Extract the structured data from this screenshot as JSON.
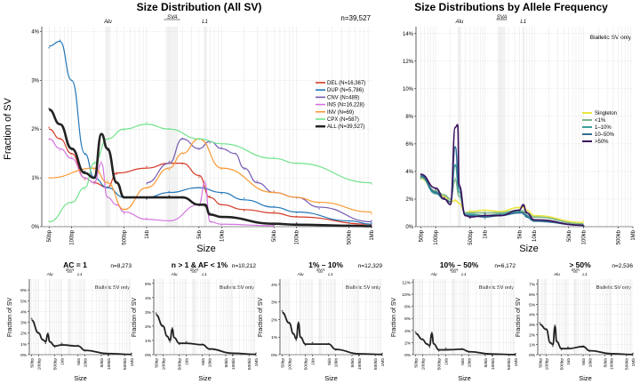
{
  "colors": {
    "DEL": "#D43925",
    "DUP": "#2376B7",
    "CNV": "#7459B2",
    "INS": "#D474E0",
    "INV": "#FA9A34",
    "CPX": "#71E38C",
    "ALL": "#222222",
    "freq": [
      "#E9E642",
      "#7FB58A",
      "#3F9E9A",
      "#2F6E92",
      "#3B0F5C"
    ]
  },
  "x_ticks": {
    "main": [
      "50bp",
      "100bp",
      "500bp",
      "1kb",
      "5kb",
      "10kb",
      "50kb",
      "100kb",
      "500kb",
      "1Mb"
    ],
    "small": [
      "50bp",
      "100bp",
      "500bp",
      "1kb",
      "5kb",
      "10kb",
      "50kb",
      "100kb",
      "500kb",
      "1Mb"
    ]
  },
  "element_labels": {
    "alu": "Alu",
    "sva": "SVA",
    "l1": "L1"
  },
  "main_chart": {
    "title": "Size Distribution (All SV)",
    "n": "n=39,527",
    "xlabel": "Size",
    "ylabel": "Fraction of SV",
    "yticks": [
      "0%",
      "1%",
      "2%",
      "3%",
      "4%"
    ],
    "legend": [
      {
        "key": "DEL",
        "label": "DEL (N=16,367)"
      },
      {
        "key": "DUP",
        "label": "DUP (N=5,786)"
      },
      {
        "key": "CNV",
        "label": "CNV (N=489)"
      },
      {
        "key": "INS",
        "label": "INS (N=16,228)"
      },
      {
        "key": "INV",
        "label": "INV (N=69)"
      },
      {
        "key": "CPX",
        "label": "CPX (N=587)"
      },
      {
        "key": "ALL",
        "label": "ALL (N=39,527)"
      }
    ]
  },
  "freq_chart": {
    "title": "Size Distributions by Allele Frequency",
    "note": "Biallelic SV only",
    "xlabel": "Size",
    "yticks": [
      "0%",
      "2%",
      "4%",
      "6%",
      "8%",
      "10%",
      "12%",
      "14%"
    ],
    "legend": [
      "Singleton",
      "<1%",
      "1–10%",
      "10–50%",
      ">50%"
    ]
  },
  "small_panels": [
    {
      "title": "AC = 1",
      "n": "n=8,273",
      "note": "Biallelic SV only",
      "yticks": [
        "0%",
        "1%",
        "2%",
        "3%",
        "4%",
        "5%",
        "6%"
      ],
      "xlabel": "Size",
      "ylabel": "Fraction of SV"
    },
    {
      "title": "n > 1 & AF < 1%",
      "n": "n=10,212",
      "note": "Biallelic SV only",
      "yticks": [
        "0%",
        "1%",
        "2%",
        "3%",
        "4%",
        "5%"
      ],
      "xlabel": "Size",
      "ylabel": "Fraction of SV"
    },
    {
      "title": "1% – 10%",
      "n": "n=12,329",
      "note": "Biallelic SV only",
      "yticks": [
        "0%",
        "1%",
        "2%",
        "3%",
        "4%"
      ],
      "xlabel": "Size",
      "ylabel": "Fraction of SV"
    },
    {
      "title": "10% – 50%",
      "n": "n=6,172",
      "note": "Biallelic SV only",
      "yticks": [
        "0%",
        "2%",
        "4%",
        "6%",
        "8%",
        "10%",
        "12%"
      ],
      "xlabel": "Size",
      "ylabel": "Fraction of SV"
    },
    {
      "title": "> 50%",
      "n": "n=2,536",
      "note": "Biallelic SV only",
      "yticks": [
        "0%",
        "1%",
        "2%",
        "3%",
        "4%",
        "5%",
        "6%",
        "7%"
      ],
      "xlabel": "Size",
      "ylabel": "Fraction of SV"
    }
  ],
  "chart_data": [
    {
      "type": "line",
      "title": "Size Distribution (All SV)",
      "xlabel": "Size",
      "ylabel": "Fraction of SV",
      "xscale": "log",
      "xlim": [
        40,
        1000000
      ],
      "ylim": [
        0,
        4.1
      ],
      "series": [
        {
          "name": "DEL (N=16,367)",
          "x": [
            50,
            70,
            100,
            150,
            200,
            300,
            400,
            1000,
            2000,
            3000,
            5000,
            7000,
            10000,
            20000,
            50000,
            100000,
            1000000
          ],
          "y": [
            2.0,
            1.8,
            1.5,
            1.0,
            0.9,
            0.8,
            1.1,
            1.2,
            1.3,
            1.3,
            1.05,
            0.6,
            0.45,
            0.35,
            0.28,
            0.2,
            0.05
          ]
        },
        {
          "name": "DUP (N=5,786)",
          "x": [
            50,
            70,
            100,
            150,
            200,
            300,
            500,
            1000,
            2000,
            5000,
            10000,
            20000,
            50000,
            100000,
            500000,
            1000000
          ],
          "y": [
            3.7,
            3.8,
            3.0,
            1.5,
            1.0,
            0.8,
            0.6,
            0.6,
            0.7,
            0.8,
            0.7,
            0.55,
            0.4,
            0.3,
            0.12,
            0.05
          ]
        },
        {
          "name": "CNV (N=489)",
          "x": [
            1000,
            2000,
            3000,
            5000,
            7000,
            10000,
            15000,
            20000,
            30000,
            50000,
            100000,
            200000,
            1000000
          ],
          "y": [
            0.9,
            1.3,
            1.8,
            1.6,
            1.75,
            1.6,
            1.5,
            1.2,
            0.9,
            0.7,
            0.6,
            0.4,
            0.1
          ]
        },
        {
          "name": "INS (N=16,228)",
          "x": [
            50,
            70,
            100,
            150,
            200,
            250,
            300,
            400,
            500,
            1000,
            2000,
            5000,
            6000,
            7000,
            10000,
            50000
          ],
          "y": [
            1.8,
            1.6,
            1.4,
            1.0,
            0.9,
            1.3,
            0.6,
            0.45,
            0.3,
            0.15,
            0.12,
            0.45,
            0.9,
            0.1,
            0.05,
            0.02
          ]
        },
        {
          "name": "INV (N=69)",
          "x": [
            50,
            200,
            300,
            500,
            1000,
            2000,
            3000,
            5000,
            10000,
            50000,
            100000,
            200000,
            1000000
          ],
          "y": [
            1.0,
            1.2,
            0.9,
            0.35,
            0.8,
            1.2,
            1.5,
            1.8,
            1.2,
            0.7,
            0.6,
            0.5,
            0.3
          ]
        },
        {
          "name": "CPX (N=587)",
          "x": [
            50,
            100,
            150,
            200,
            300,
            500,
            1000,
            2000,
            5000,
            10000,
            50000,
            100000,
            1000000
          ],
          "y": [
            0.1,
            0.5,
            0.8,
            1.3,
            1.8,
            2.0,
            2.1,
            2.0,
            1.8,
            1.7,
            1.4,
            1.3,
            0.9
          ]
        },
        {
          "name": "ALL (N=39,527)",
          "x": [
            50,
            70,
            100,
            150,
            200,
            250,
            300,
            400,
            500,
            1000,
            2000,
            3000,
            5000,
            6000,
            7000,
            10000,
            50000,
            100000,
            500000,
            1000000
          ],
          "y": [
            2.4,
            2.1,
            1.6,
            1.1,
            1.0,
            1.9,
            1.6,
            0.9,
            0.6,
            0.6,
            0.6,
            0.6,
            0.45,
            0.45,
            0.25,
            0.2,
            0.06,
            0.04,
            0.02,
            0.01
          ]
        }
      ]
    },
    {
      "type": "line",
      "title": "Size Distributions by Allele Frequency",
      "xlabel": "Size",
      "xscale": "log",
      "xlim": [
        40,
        1000000
      ],
      "ylim": [
        0,
        14.5
      ],
      "series": [
        {
          "name": "Singleton",
          "x": [
            50,
            100,
            150,
            200,
            250,
            300,
            400,
            500,
            1000,
            2000,
            5000,
            6000,
            7000,
            10000,
            100000
          ],
          "y": [
            3.5,
            2.5,
            2.2,
            1.8,
            1.9,
            1.7,
            1.0,
            1.1,
            1.2,
            1.1,
            1.4,
            1.4,
            1.2,
            0.8,
            0.3
          ]
        },
        {
          "name": "<1%",
          "x": [
            50,
            100,
            150,
            200,
            250,
            300,
            400,
            500,
            1000,
            2000,
            5000,
            6000,
            7000,
            10000,
            100000
          ],
          "y": [
            3.6,
            2.6,
            2.3,
            2.0,
            3.4,
            2.2,
            1.0,
            1.0,
            1.0,
            1.0,
            1.2,
            1.1,
            1.0,
            0.7,
            0.2
          ]
        },
        {
          "name": "1–10%",
          "x": [
            50,
            100,
            150,
            200,
            250,
            300,
            400,
            500,
            1000,
            2000,
            5000,
            6000,
            7000,
            10000,
            100000
          ],
          "y": [
            3.6,
            2.4,
            2.0,
            1.8,
            4.5,
            2.5,
            0.9,
            0.9,
            0.8,
            0.9,
            1.1,
            1.0,
            0.8,
            0.5,
            0.1
          ]
        },
        {
          "name": "10–50%",
          "x": [
            50,
            100,
            150,
            200,
            250,
            300,
            400,
            500,
            1000,
            2000,
            5000,
            6000,
            7000,
            10000,
            100000
          ],
          "y": [
            3.7,
            2.5,
            2.0,
            1.8,
            5.8,
            2.8,
            0.8,
            0.8,
            0.7,
            0.8,
            1.0,
            1.0,
            0.7,
            0.4,
            0.1
          ]
        },
        {
          "name": ">50%",
          "x": [
            50,
            100,
            150,
            200,
            250,
            280,
            300,
            400,
            500,
            1000,
            2000,
            5000,
            6000,
            7000,
            10000,
            100000
          ],
          "y": [
            3.8,
            2.8,
            2.0,
            1.6,
            7.2,
            7.4,
            3.0,
            0.8,
            0.7,
            0.8,
            0.8,
            1.2,
            1.6,
            1.0,
            0.5,
            0.1
          ]
        }
      ]
    },
    {
      "type": "line",
      "title": "AC = 1",
      "xlabel": "Size",
      "ylabel": "Fraction of SV",
      "xscale": "log",
      "ylim": [
        0,
        7
      ],
      "series": [
        {
          "name": "ALL",
          "x": [
            50,
            100,
            150,
            200,
            250,
            300,
            500,
            1000,
            5000,
            10000,
            100000,
            1000000
          ],
          "y": [
            3.2,
            2.0,
            1.4,
            1.2,
            1.9,
            1.2,
            0.8,
            0.9,
            0.8,
            0.4,
            0.1,
            0.02
          ]
        }
      ]
    },
    {
      "type": "line",
      "title": "n > 1 & AF < 1%",
      "xlabel": "Size",
      "ylabel": "Fraction of SV",
      "xscale": "log",
      "ylim": [
        0,
        5.3
      ],
      "series": [
        {
          "name": "ALL",
          "x": [
            50,
            100,
            150,
            200,
            250,
            300,
            500,
            1000,
            5000,
            10000,
            100000,
            1000000
          ],
          "y": [
            2.8,
            2.0,
            1.3,
            1.0,
            1.8,
            1.2,
            0.8,
            0.8,
            0.7,
            0.4,
            0.1,
            0.02
          ]
        }
      ]
    },
    {
      "type": "line",
      "title": "1% – 10%",
      "xlabel": "Size",
      "ylabel": "Fraction of SV",
      "xscale": "log",
      "ylim": [
        0,
        4.3
      ],
      "series": [
        {
          "name": "ALL",
          "x": [
            50,
            100,
            150,
            200,
            250,
            300,
            500,
            1000,
            5000,
            10000,
            100000,
            1000000
          ],
          "y": [
            2.4,
            1.8,
            1.2,
            0.9,
            1.8,
            1.0,
            0.6,
            0.6,
            0.6,
            0.3,
            0.05,
            0.01
          ]
        }
      ]
    },
    {
      "type": "line",
      "title": "10% – 50%",
      "xlabel": "Size",
      "ylabel": "Fraction of SV",
      "xscale": "log",
      "ylim": [
        0,
        12.5
      ],
      "series": [
        {
          "name": "ALL",
          "x": [
            50,
            100,
            150,
            200,
            250,
            300,
            500,
            1000,
            5000,
            10000,
            100000,
            1000000
          ],
          "y": [
            3.5,
            2.5,
            1.8,
            1.5,
            3.5,
            1.8,
            0.8,
            0.8,
            0.9,
            0.5,
            0.1,
            0.01
          ]
        }
      ]
    },
    {
      "type": "line",
      "title": "> 50%",
      "xlabel": "Size",
      "ylabel": "Fraction of SV",
      "xscale": "log",
      "ylim": [
        0,
        7.5
      ],
      "series": [
        {
          "name": "ALL",
          "x": [
            50,
            100,
            150,
            200,
            250,
            300,
            500,
            1000,
            5000,
            10000,
            100000,
            1000000
          ],
          "y": [
            3.0,
            2.5,
            1.2,
            1.0,
            2.8,
            1.3,
            0.6,
            0.6,
            0.8,
            0.4,
            0.1,
            0.01
          ]
        }
      ]
    }
  ]
}
